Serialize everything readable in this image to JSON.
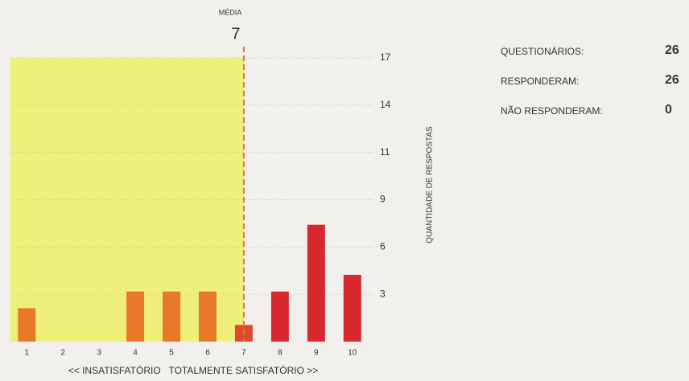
{
  "chart_data": {
    "type": "bar",
    "x": [
      1,
      2,
      3,
      4,
      5,
      6,
      7,
      8,
      9,
      10
    ],
    "values": [
      2,
      0,
      0,
      3,
      3,
      3,
      1,
      3,
      7,
      4
    ],
    "colors": [
      "#e8782a",
      "#e8782a",
      "#e8782a",
      "#e8782a",
      "#e8782a",
      "#e8782a",
      "#de4a2c",
      "#d8282e",
      "#d8282e",
      "#d8282e"
    ],
    "xlim": [
      0.55,
      10.45
    ],
    "ylim": [
      0,
      17
    ],
    "yticks": [
      {
        "value": 2.833,
        "label": "3"
      },
      {
        "value": 5.667,
        "label": "6"
      },
      {
        "value": 8.5,
        "label": "9"
      },
      {
        "value": 11.333,
        "label": "11"
      },
      {
        "value": 14.167,
        "label": "14"
      },
      17
    ],
    "grid": true,
    "ylabel": "QUANTIDADE DE RESPOSTAS",
    "xlabel_left": "<< INSATISFATÓRIO",
    "xlabel_right": "TOTALMENTE SATISFATÓRIO >>",
    "mean_label": "MÉDIA",
    "mean": 7,
    "highlight_color": "#eef07a",
    "mean_color": "#e8782a"
  },
  "stats": [
    {
      "label": "QUESTIONÁRIOS:",
      "value": 26
    },
    {
      "label": "RESPONDERAM:",
      "value": 26
    },
    {
      "label": "NÃO RESPONDERAM:",
      "value": 0
    }
  ],
  "stats_color": "#d8282e"
}
